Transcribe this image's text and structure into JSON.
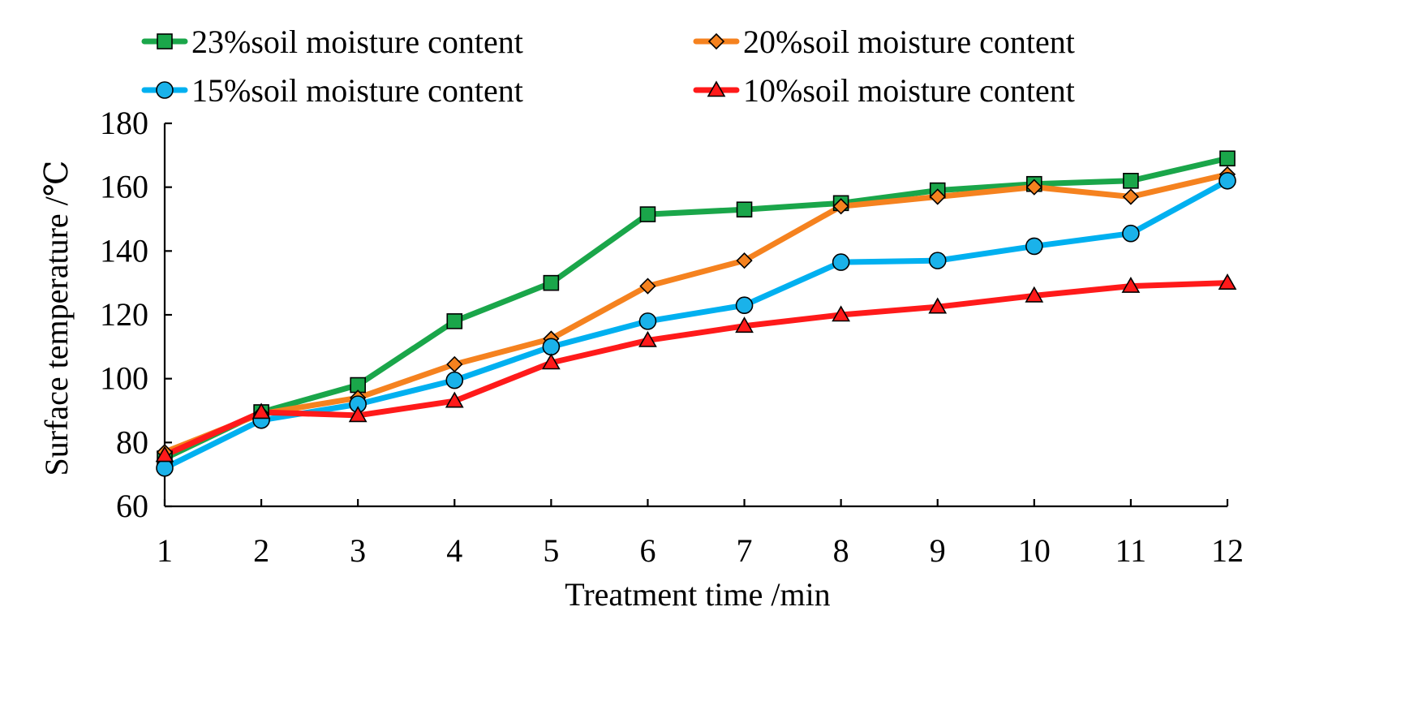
{
  "chart_data": {
    "type": "line",
    "title": "",
    "xlabel": "Treatment time /min",
    "ylabel": "Surface temperature /℃",
    "x": [
      1,
      2,
      3,
      4,
      5,
      6,
      7,
      8,
      9,
      10,
      11,
      12
    ],
    "xlim": [
      1,
      12
    ],
    "ylim": [
      60,
      180
    ],
    "yticks": [
      60,
      80,
      100,
      120,
      140,
      160,
      180
    ],
    "grid": false,
    "legend_position": "top",
    "series": [
      {
        "name": "23%soil moisture content",
        "color": "#1aa64a",
        "marker": "square",
        "marker_color": "#1aa64a",
        "values": [
          75,
          89.5,
          98,
          118,
          130,
          151.5,
          153,
          155,
          159,
          161,
          162,
          169
        ]
      },
      {
        "name": "20%soil moisture content",
        "color": "#f5821f",
        "marker": "diamond",
        "marker_color": "#f5821f",
        "values": [
          77,
          89,
          94,
          104.5,
          112.5,
          129,
          137,
          154,
          157,
          160,
          157,
          164
        ]
      },
      {
        "name": "15%soil moisture content",
        "color": "#00b0f0",
        "marker": "circle",
        "marker_color": "#1ab2ea",
        "values": [
          72,
          87,
          92,
          99.5,
          110,
          118,
          123,
          136.5,
          137,
          141.5,
          145.5,
          162
        ]
      },
      {
        "name": "10%soil moisture content",
        "color": "#ff1a1a",
        "marker": "triangle",
        "marker_color": "#ff1a1a",
        "values": [
          76,
          89.5,
          88.5,
          93,
          105,
          112,
          116.5,
          120,
          122.5,
          126,
          129,
          130
        ]
      }
    ]
  }
}
